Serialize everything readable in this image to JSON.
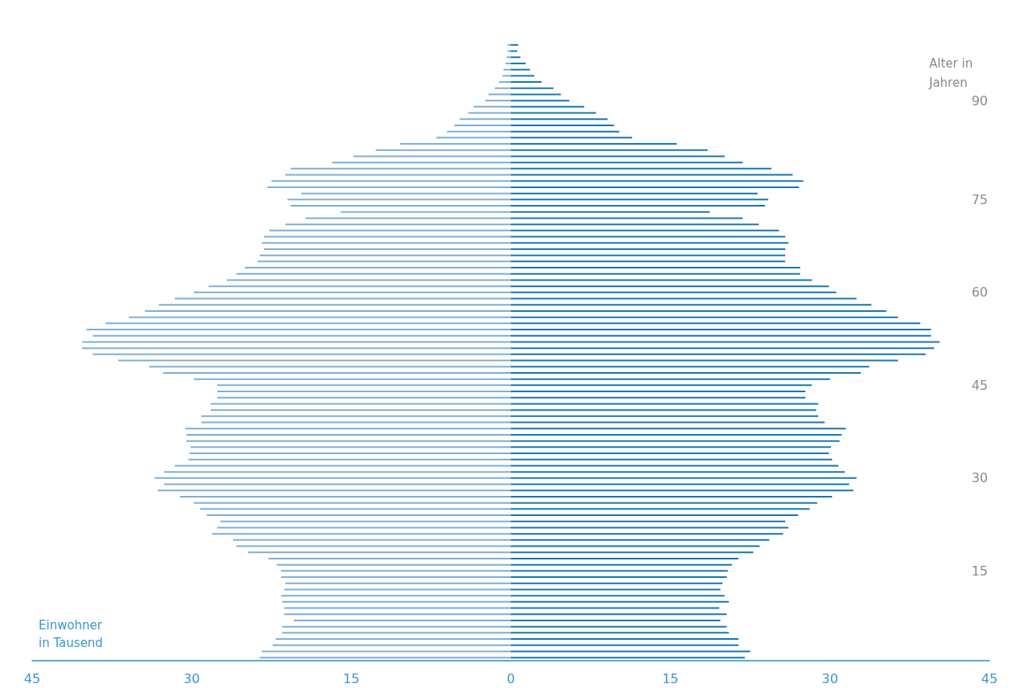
{
  "chart_data": {
    "type": "bar",
    "orientation": "horizontal",
    "xlabel": "Einwohner in Tausend",
    "ylabel": "Alter in Jahren",
    "categories": [
      null,
      null,
      null,
      null,
      null,
      null,
      null,
      null,
      null,
      "90",
      null,
      null,
      null,
      null,
      null,
      null,
      null,
      null,
      null,
      null,
      null,
      null,
      null,
      null,
      null,
      "75",
      null,
      null,
      null,
      null,
      null,
      null,
      null,
      null,
      null,
      null,
      null,
      null,
      null,
      null,
      "60",
      null,
      null,
      null,
      null,
      null,
      null,
      null,
      null,
      null,
      null,
      null,
      null,
      null,
      null,
      "45",
      null,
      null,
      null,
      null,
      null,
      null,
      null,
      null,
      null,
      null,
      null,
      null,
      null,
      null,
      "30",
      null,
      null,
      null,
      null,
      null,
      null,
      null,
      null,
      null,
      null,
      null,
      null,
      null,
      null,
      "15",
      null,
      null,
      null,
      null,
      null,
      null,
      null,
      null,
      null,
      null,
      null,
      null,
      null,
      null
    ],
    "series": [
      {
        "color": "#7eaed6",
        "values": [
          -0.3,
          -0.3,
          -0.4,
          -0.5,
          -0.7,
          -0.8,
          -1.1,
          -1.5,
          -2.1,
          -2.4,
          -3.5,
          -4.0,
          -4.8,
          -5.3,
          -6.0,
          -7.0,
          -10.4,
          -12.7,
          -14.8,
          -16.8,
          -20.7,
          -21.2,
          -22.5,
          -22.9,
          -19.7,
          -21.0,
          -20.7,
          -16.0,
          -19.3,
          -21.2,
          -22.7,
          -23.2,
          -23.4,
          -23.2,
          -23.6,
          -23.8,
          -25.0,
          -25.8,
          -26.7,
          -28.4,
          -29.8,
          -31.6,
          -33.1,
          -34.4,
          -35.9,
          -38.1,
          -39.9,
          -39.3,
          -40.3,
          -40.3,
          -39.3,
          -36.9,
          -34.0,
          -32.7,
          -29.8,
          -27.6,
          -27.6,
          -27.6,
          -28.2,
          -28.2,
          -29.1,
          -29.1,
          -30.6,
          -30.5,
          -30.5,
          -30.1,
          -30.2,
          -30.3,
          -31.6,
          -32.6,
          -33.5,
          -32.6,
          -33.2,
          -31.1,
          -29.8,
          -29.2,
          -28.6,
          -27.3,
          -27.6,
          -28.1,
          -26.1,
          -25.8,
          -24.7,
          -22.8,
          -22.0,
          -21.6,
          -21.6,
          -21.2,
          -21.3,
          -21.6,
          -21.5,
          -21.3,
          -21.3,
          -20.4,
          -21.5,
          -21.5,
          -22.1,
          -22.4,
          -23.4,
          -23.6
        ]
      },
      {
        "color": "#1677b0",
        "values": [
          0.7,
          0.6,
          0.9,
          1.4,
          1.8,
          2.2,
          2.9,
          4.0,
          4.7,
          5.5,
          6.9,
          8.0,
          9.1,
          9.7,
          10.2,
          11.4,
          15.6,
          18.5,
          20.1,
          21.8,
          24.5,
          26.5,
          27.5,
          27.1,
          23.2,
          24.2,
          23.9,
          18.7,
          21.8,
          23.3,
          25.2,
          25.8,
          26.1,
          25.8,
          25.8,
          25.8,
          27.2,
          27.2,
          28.3,
          29.9,
          30.6,
          32.5,
          33.9,
          35.3,
          36.4,
          38.5,
          39.5,
          39.5,
          40.3,
          39.8,
          39.0,
          36.4,
          33.7,
          32.9,
          30.0,
          28.3,
          27.7,
          27.7,
          28.9,
          28.7,
          28.9,
          29.5,
          31.5,
          31.1,
          30.9,
          30.1,
          29.9,
          30.2,
          30.8,
          31.4,
          32.5,
          31.8,
          32.2,
          30.2,
          28.8,
          28.1,
          27.0,
          25.8,
          26.1,
          25.6,
          24.3,
          23.4,
          22.8,
          21.4,
          20.8,
          20.4,
          20.3,
          19.9,
          19.7,
          20.1,
          20.5,
          19.6,
          20.3,
          19.7,
          20.3,
          20.5,
          21.4,
          21.4,
          22.5,
          22.0
        ]
      }
    ],
    "xlim": [
      -45,
      45
    ],
    "xticks": [
      {
        "value": -45,
        "label": "45"
      },
      {
        "value": -30,
        "label": "30"
      },
      {
        "value": -15,
        "label": "15"
      },
      0,
      15,
      30,
      45
    ],
    "grid": false
  }
}
